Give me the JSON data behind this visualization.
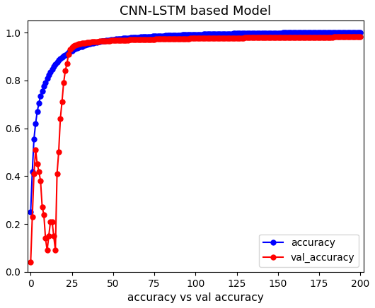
{
  "title": "CNN-LSTM based Model",
  "xlabel": "accuracy vs val accuracy",
  "xlim": [
    -2,
    202
  ],
  "ylim": [
    0.0,
    1.05
  ],
  "line_color_accuracy": "#0000ff",
  "line_color_val": "#ff0000",
  "marker_size": 5,
  "legend_labels": [
    "accuracy",
    "val_accuracy"
  ],
  "num_epochs": 200,
  "accuracy": [
    0.25,
    0.42,
    0.555,
    0.62,
    0.67,
    0.705,
    0.735,
    0.755,
    0.775,
    0.792,
    0.808,
    0.822,
    0.835,
    0.848,
    0.858,
    0.868,
    0.876,
    0.884,
    0.891,
    0.897,
    0.902,
    0.907,
    0.912,
    0.917,
    0.921,
    0.925,
    0.929,
    0.932,
    0.935,
    0.938,
    0.941,
    0.943,
    0.946,
    0.948,
    0.95,
    0.952,
    0.954,
    0.956,
    0.957,
    0.959,
    0.96,
    0.962,
    0.963,
    0.964,
    0.965,
    0.966,
    0.967,
    0.968,
    0.969,
    0.97,
    0.971,
    0.972,
    0.973,
    0.974,
    0.974,
    0.975,
    0.976,
    0.976,
    0.977,
    0.978,
    0.978,
    0.979,
    0.979,
    0.98,
    0.98,
    0.981,
    0.981,
    0.982,
    0.982,
    0.983,
    0.983,
    0.984,
    0.984,
    0.984,
    0.985,
    0.985,
    0.985,
    0.986,
    0.986,
    0.987,
    0.987,
    0.987,
    0.988,
    0.988,
    0.988,
    0.989,
    0.989,
    0.989,
    0.99,
    0.99,
    0.99,
    0.99,
    0.991,
    0.991,
    0.991,
    0.991,
    0.992,
    0.992,
    0.992,
    0.992,
    0.993,
    0.993,
    0.993,
    0.993,
    0.993,
    0.994,
    0.994,
    0.994,
    0.994,
    0.994,
    0.995,
    0.995,
    0.995,
    0.995,
    0.995,
    0.995,
    0.996,
    0.996,
    0.996,
    0.996,
    0.996,
    0.996,
    0.996,
    0.997,
    0.997,
    0.997,
    0.997,
    0.997,
    0.997,
    0.997,
    0.998,
    0.998,
    0.998,
    0.998,
    0.998,
    0.998,
    0.998,
    0.998,
    0.998,
    0.999,
    0.999,
    0.999,
    0.999,
    0.999,
    0.999,
    0.999,
    0.999,
    0.999,
    0.999,
    0.999,
    0.999,
    0.999,
    0.999,
    1.0,
    1.0,
    1.0,
    1.0,
    1.0,
    1.0,
    1.0,
    1.0,
    1.0,
    1.0,
    1.0,
    1.0,
    1.0,
    1.0,
    1.0,
    1.0,
    1.0,
    1.0,
    1.0,
    1.0,
    1.0,
    1.0,
    1.0,
    1.0,
    1.0,
    1.0,
    1.0,
    1.0,
    1.0,
    1.0,
    1.0,
    1.0,
    1.0,
    1.0,
    1.0,
    1.0,
    1.0,
    1.0,
    1.0,
    1.0,
    1.0,
    1.0,
    1.0,
    1.0,
    1.0,
    1.0,
    1.0,
    1.0
  ],
  "val_accuracy": [
    0.04,
    0.23,
    0.41,
    0.51,
    0.45,
    0.42,
    0.38,
    0.27,
    0.24,
    0.14,
    0.09,
    0.15,
    0.21,
    0.21,
    0.15,
    0.09,
    0.41,
    0.5,
    0.64,
    0.71,
    0.79,
    0.84,
    0.87,
    0.91,
    0.93,
    0.94,
    0.945,
    0.948,
    0.95,
    0.952,
    0.954,
    0.955,
    0.956,
    0.957,
    0.958,
    0.959,
    0.96,
    0.961,
    0.961,
    0.962,
    0.963,
    0.963,
    0.964,
    0.964,
    0.965,
    0.965,
    0.966,
    0.966,
    0.966,
    0.967,
    0.967,
    0.967,
    0.968,
    0.968,
    0.968,
    0.968,
    0.969,
    0.969,
    0.969,
    0.969,
    0.97,
    0.97,
    0.97,
    0.97,
    0.97,
    0.971,
    0.971,
    0.971,
    0.971,
    0.971,
    0.972,
    0.972,
    0.972,
    0.972,
    0.972,
    0.972,
    0.973,
    0.973,
    0.973,
    0.973,
    0.973,
    0.973,
    0.974,
    0.974,
    0.974,
    0.974,
    0.974,
    0.974,
    0.974,
    0.975,
    0.975,
    0.975,
    0.975,
    0.975,
    0.975,
    0.975,
    0.975,
    0.976,
    0.976,
    0.976,
    0.976,
    0.976,
    0.976,
    0.976,
    0.976,
    0.976,
    0.977,
    0.977,
    0.977,
    0.977,
    0.977,
    0.977,
    0.977,
    0.977,
    0.977,
    0.977,
    0.977,
    0.978,
    0.978,
    0.978,
    0.978,
    0.978,
    0.978,
    0.978,
    0.978,
    0.978,
    0.978,
    0.978,
    0.978,
    0.978,
    0.979,
    0.979,
    0.979,
    0.979,
    0.979,
    0.979,
    0.979,
    0.979,
    0.979,
    0.979,
    0.979,
    0.979,
    0.979,
    0.979,
    0.979,
    0.98,
    0.98,
    0.98,
    0.98,
    0.98,
    0.98,
    0.98,
    0.98,
    0.98,
    0.98,
    0.98,
    0.98,
    0.98,
    0.98,
    0.98,
    0.98,
    0.98,
    0.981,
    0.981,
    0.981,
    0.981,
    0.981,
    0.981,
    0.981,
    0.981,
    0.981,
    0.981,
    0.981,
    0.981,
    0.981,
    0.981,
    0.981,
    0.981,
    0.981,
    0.981,
    0.981,
    0.981,
    0.981,
    0.981,
    0.982,
    0.982,
    0.982,
    0.982,
    0.982,
    0.982,
    0.982,
    0.982,
    0.982,
    0.982,
    0.982,
    0.982,
    0.982,
    0.982,
    0.982,
    0.982,
    0.982
  ]
}
